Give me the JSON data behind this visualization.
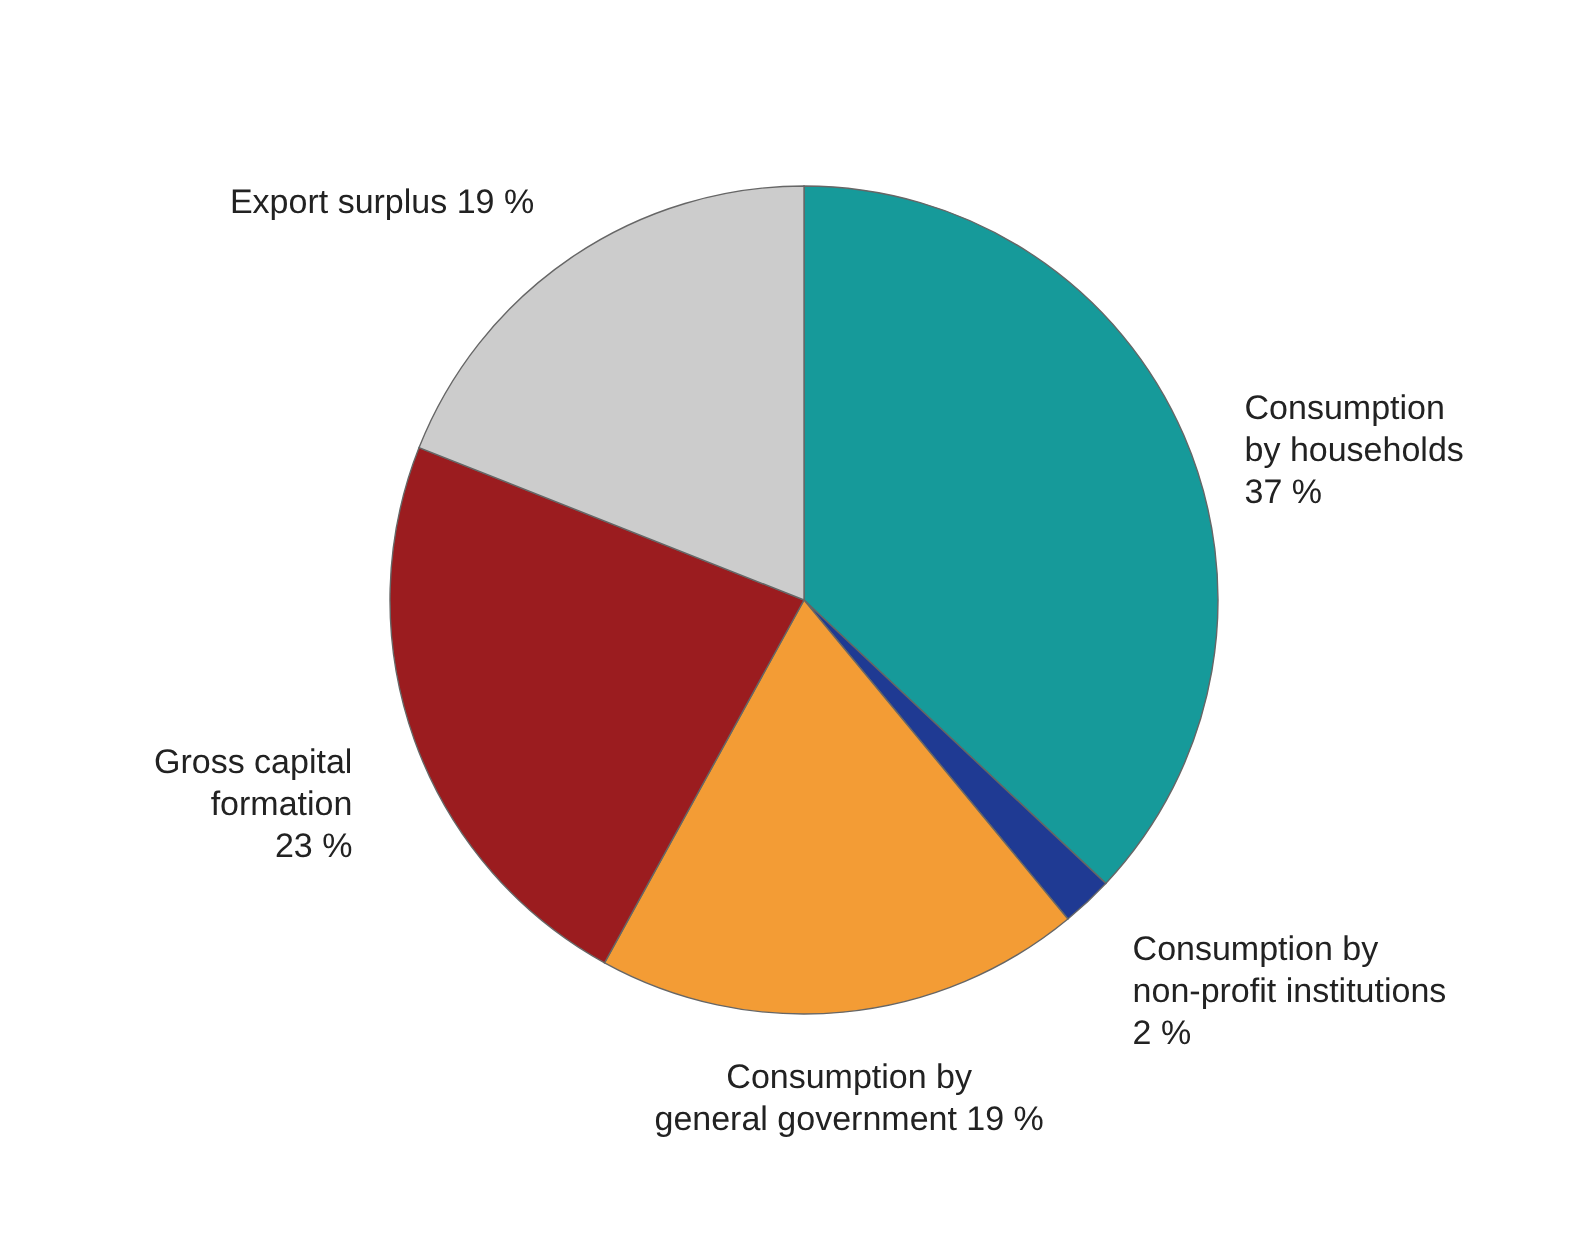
{
  "chart_data": {
    "type": "pie",
    "categories": [
      "Consumption by households",
      "Consumption by non-profit institutions",
      "Consumption by general government",
      "Gross capital formation",
      "Export surplus"
    ],
    "values": [
      37,
      2,
      19,
      23,
      19
    ],
    "value_labels": [
      "37 %",
      "2 %",
      "19 %",
      "23 %",
      "19 %"
    ],
    "colors": [
      "#169a9a",
      "#1f3a93",
      "#f39c35",
      "#9b1c1f",
      "#cccccc"
    ]
  }
}
